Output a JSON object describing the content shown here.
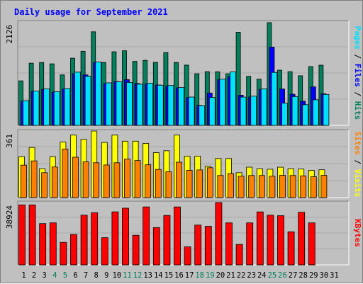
{
  "title": "Daily usage for September 2021",
  "colors": {
    "background": "#c0c0c0",
    "title": "#0000ff",
    "hits": "#00805c",
    "files": "#0000ff",
    "pages": "#00e0ff",
    "visits": "#ffff00",
    "sites": "#ff8000",
    "kbytes": "#ff0000",
    "weekend_label": "#00805c",
    "weekday_label": "#000000"
  },
  "chart_data": [
    {
      "type": "bar",
      "name": "hits-files-pages",
      "axis_label": "2126",
      "ylim": [
        0,
        2126
      ],
      "legend": [
        "Pages",
        "Files",
        "Hits"
      ],
      "legend_separator": " / ",
      "categories": [
        "1",
        "2",
        "3",
        "4",
        "5",
        "6",
        "7",
        "8",
        "9",
        "10",
        "11",
        "12",
        "13",
        "14",
        "15",
        "16",
        "17",
        "18",
        "19",
        "20",
        "21",
        "22",
        "23",
        "24",
        "25",
        "26",
        "27",
        "28",
        "29",
        "30",
        "31"
      ],
      "series": [
        {
          "name": "Hits",
          "values": [
            915,
            1279,
            1293,
            1265,
            1038,
            1382,
            1524,
            1924,
            1293,
            1513,
            1534,
            1316,
            1337,
            1295,
            1496,
            1293,
            1239,
            1061,
            1104,
            1102,
            1060,
            1916,
            1009,
            949,
            2112,
            1135,
            1104,
            1020,
            1209,
            1237,
            0
          ]
        },
        {
          "name": "Files",
          "values": [
            500,
            700,
            740,
            686,
            749,
            1066,
            1037,
            1296,
            860,
            900,
            940,
            860,
            850,
            830,
            812,
            771,
            574,
            410,
            665,
            940,
            1000,
            620,
            584,
            740,
            1608,
            748,
            640,
            496,
            792,
            650,
            0
          ]
        },
        {
          "name": "Pages",
          "values": [
            507,
            707,
            748,
            694,
            757,
            1094,
            1009,
            1302,
            874,
            895,
            883,
            847,
            866,
            826,
            820,
            777,
            582,
            404,
            573,
            950,
            1099,
            581,
            600,
            748,
            1089,
            456,
            592,
            425,
            526,
            636,
            0
          ]
        }
      ]
    },
    {
      "type": "bar",
      "name": "visits-sites",
      "axis_label": "361",
      "ylim": [
        0,
        361
      ],
      "legend": [
        "Sites",
        "Visits"
      ],
      "legend_separator": " / ",
      "categories": [
        "1",
        "2",
        "3",
        "4",
        "5",
        "6",
        "7",
        "8",
        "9",
        "10",
        "11",
        "12",
        "13",
        "14",
        "15",
        "16",
        "17",
        "18",
        "19",
        "20",
        "21",
        "22",
        "23",
        "24",
        "25",
        "26",
        "27",
        "28",
        "29",
        "30",
        "31"
      ],
      "series": [
        {
          "name": "Visits",
          "values": [
            222,
            272,
            157,
            222,
            301,
            339,
            316,
            361,
            299,
            339,
            306,
            306,
            294,
            244,
            254,
            339,
            225,
            225,
            170,
            212,
            212,
            135,
            165,
            157,
            154,
            165,
            157,
            155,
            148,
            151,
            0
          ]
        },
        {
          "name": "Sites",
          "values": [
            176,
            199,
            135,
            166,
            263,
            219,
            194,
            189,
            177,
            189,
            209,
            201,
            178,
            153,
            140,
            192,
            148,
            150,
            162,
            120,
            130,
            116,
            120,
            120,
            116,
            121,
            120,
            118,
            113,
            121,
            0
          ]
        }
      ]
    },
    {
      "type": "bar",
      "name": "kbytes",
      "axis_label": "38924",
      "ylim": [
        0,
        38924
      ],
      "legend": [
        "KBytes"
      ],
      "legend_separator": "",
      "categories": [
        "1",
        "2",
        "3",
        "4",
        "5",
        "6",
        "7",
        "8",
        "9",
        "10",
        "11",
        "12",
        "13",
        "14",
        "15",
        "16",
        "17",
        "18",
        "19",
        "20",
        "21",
        "22",
        "23",
        "24",
        "25",
        "26",
        "27",
        "28",
        "29",
        "30",
        "31"
      ],
      "series": [
        {
          "name": "KBytes",
          "values": [
            37470,
            37470,
            25774,
            26236,
            14070,
            19001,
            31040,
            32582,
            17001,
            33100,
            35425,
            18478,
            36197,
            23314,
            30885,
            36197,
            11302,
            24854,
            24083,
            38924,
            26236,
            12800,
            26236,
            33100,
            31040,
            30730,
            20688,
            32890,
            26236,
            0,
            0
          ]
        }
      ]
    }
  ],
  "x_axis": {
    "labels": [
      "1",
      "2",
      "3",
      "4",
      "5",
      "6",
      "7",
      "8",
      "9",
      "10",
      "11",
      "12",
      "13",
      "14",
      "15",
      "16",
      "17",
      "18",
      "19",
      "20",
      "21",
      "22",
      "23",
      "24",
      "25",
      "26",
      "27",
      "28",
      "29",
      "30",
      "31"
    ],
    "weekend": [
      false,
      false,
      false,
      true,
      true,
      false,
      false,
      false,
      false,
      false,
      true,
      true,
      false,
      false,
      false,
      false,
      false,
      true,
      true,
      false,
      false,
      false,
      false,
      false,
      true,
      true,
      false,
      false,
      false,
      false,
      false
    ]
  }
}
